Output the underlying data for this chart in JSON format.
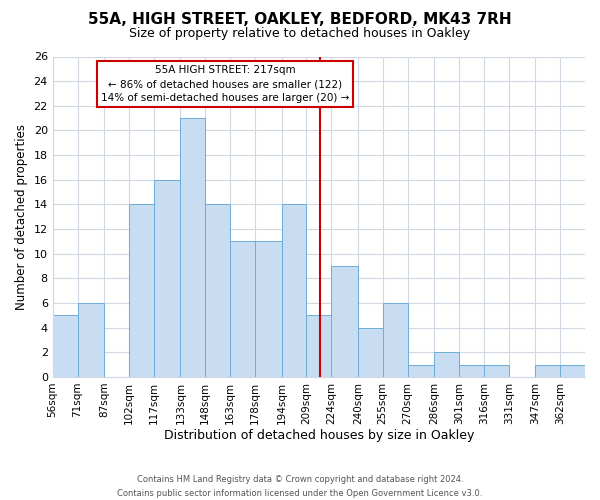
{
  "title": "55A, HIGH STREET, OAKLEY, BEDFORD, MK43 7RH",
  "subtitle": "Size of property relative to detached houses in Oakley",
  "xlabel": "Distribution of detached houses by size in Oakley",
  "ylabel": "Number of detached properties",
  "bin_edges": [
    56,
    71,
    87,
    102,
    117,
    133,
    148,
    163,
    178,
    194,
    209,
    224,
    240,
    255,
    270,
    286,
    301,
    316,
    331,
    347,
    362,
    377
  ],
  "bin_labels": [
    "56sqm",
    "71sqm",
    "87sqm",
    "102sqm",
    "117sqm",
    "133sqm",
    "148sqm",
    "163sqm",
    "178sqm",
    "194sqm",
    "209sqm",
    "224sqm",
    "240sqm",
    "255sqm",
    "270sqm",
    "286sqm",
    "301sqm",
    "316sqm",
    "331sqm",
    "347sqm",
    "362sqm"
  ],
  "counts": [
    5,
    6,
    0,
    14,
    16,
    21,
    14,
    11,
    11,
    14,
    5,
    9,
    4,
    6,
    1,
    2,
    1,
    1,
    0,
    1,
    1
  ],
  "bar_color": "#c9ddf2",
  "bar_edge_color": "#6baed6",
  "property_value": 217,
  "red_line_color": "#cc0000",
  "annotation_line1": "55A HIGH STREET: 217sqm",
  "annotation_line2": "← 86% of detached houses are smaller (122)",
  "annotation_line3": "14% of semi-detached houses are larger (20) →",
  "annotation_box_color": "#ffffff",
  "annotation_box_edge": "#cc0000",
  "ylim": [
    0,
    26
  ],
  "yticks": [
    0,
    2,
    4,
    6,
    8,
    10,
    12,
    14,
    16,
    18,
    20,
    22,
    24,
    26
  ],
  "footer_line1": "Contains HM Land Registry data © Crown copyright and database right 2024.",
  "footer_line2": "Contains public sector information licensed under the Open Government Licence v3.0.",
  "background_color": "#ffffff",
  "grid_color": "#d0d8e4"
}
